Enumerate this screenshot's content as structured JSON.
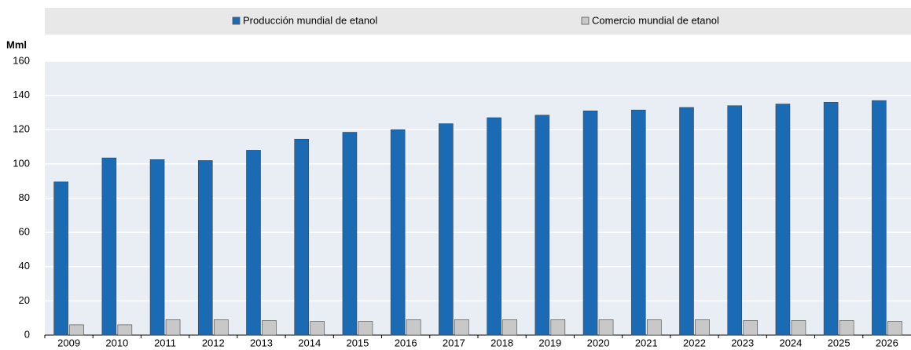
{
  "chart_data": {
    "type": "bar",
    "y_label": "Mml",
    "categories": [
      "2009",
      "2010",
      "2011",
      "2012",
      "2013",
      "2014",
      "2015",
      "2016",
      "2017",
      "2018",
      "2019",
      "2020",
      "2021",
      "2022",
      "2023",
      "2024",
      "2025",
      "2026"
    ],
    "series": [
      {
        "name": "Producción mundial de etanol",
        "color": "#1a6ab4",
        "values": [
          89.5,
          103.5,
          102.5,
          102,
          108,
          114.5,
          118.5,
          120,
          123.5,
          127,
          128.5,
          131,
          131.5,
          133,
          134,
          135,
          136,
          137
        ]
      },
      {
        "name": "Comercio mundial de etanol",
        "color": "#c8c8c8",
        "values": [
          6,
          6,
          9,
          9,
          8.5,
          8,
          8,
          9,
          9,
          9,
          9,
          9,
          9,
          9,
          8.5,
          8.5,
          8.5,
          8
        ]
      }
    ],
    "ylim": [
      0,
      160
    ],
    "yticks": [
      0,
      20,
      40,
      60,
      80,
      100,
      120,
      140,
      160
    ],
    "grid": true,
    "legend": "top"
  }
}
